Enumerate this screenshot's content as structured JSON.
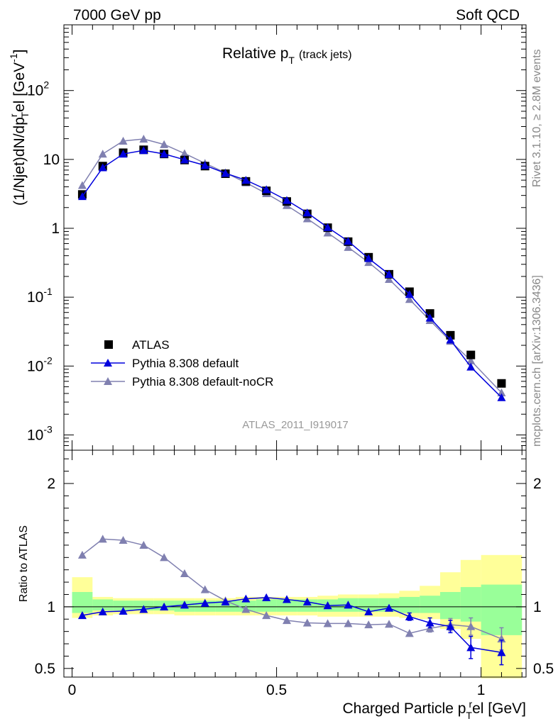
{
  "header": {
    "left": "7000 GeV pp",
    "right": "Soft QCD"
  },
  "side_text": {
    "top": "Rivet 3.1.10, ≥ 2.8M events",
    "bottom": "mcplots.cern.ch [arXiv:1306.3436]"
  },
  "colors": {
    "atlas": "#000000",
    "pythia_default": "#0000dd",
    "pythia_nocr": "#8080b0",
    "band_inner": "#99ff99",
    "band_outer": "#ffff99"
  },
  "chart_data": [
    {
      "type": "line",
      "panel": "main",
      "title": "Relative p",
      "title_sub": "T",
      "title_note": "(track jets)",
      "ylabel": "(1/Njet)dN/dp",
      "ylabel_sub": "T",
      "ylabel_sup": "r",
      "ylabel_tail": "el [GeV",
      "ylabel_unit_sup": "-1",
      "yscale": "log",
      "ylim": [
        0.0006,
        900
      ],
      "xlim": [
        -0.02,
        1.11
      ],
      "yticks": [
        {
          "v": 0.001,
          "base": "10",
          "exp": "-3"
        },
        {
          "v": 0.01,
          "base": "10",
          "exp": "-2"
        },
        {
          "v": 0.1,
          "base": "10",
          "exp": "-1"
        },
        {
          "v": 1,
          "base": "1",
          "exp": ""
        },
        {
          "v": 10,
          "base": "10",
          "exp": ""
        },
        {
          "v": 100,
          "base": "10",
          "exp": "2"
        }
      ],
      "watermark": "ATLAS_2011_I919017",
      "legend_position": "lower-left",
      "x": [
        0.025,
        0.075,
        0.125,
        0.175,
        0.225,
        0.275,
        0.325,
        0.375,
        0.425,
        0.475,
        0.525,
        0.575,
        0.625,
        0.675,
        0.725,
        0.775,
        0.825,
        0.875,
        0.925,
        0.975,
        1.05
      ],
      "series": [
        {
          "name": "ATLAS",
          "style": "markers",
          "values": [
            3.1,
            8.0,
            12.5,
            13.8,
            12.0,
            9.8,
            8.0,
            6.2,
            4.8,
            3.5,
            2.45,
            1.62,
            1.02,
            0.64,
            0.38,
            0.215,
            0.12,
            0.058,
            0.028,
            0.0145,
            0.0056
          ]
        },
        {
          "name": "Pythia 8.308 default",
          "style": "line-triangle",
          "values": [
            2.9,
            7.6,
            12.0,
            13.5,
            12.0,
            9.9,
            8.2,
            6.3,
            5.0,
            3.65,
            2.55,
            1.68,
            1.03,
            0.65,
            0.365,
            0.215,
            0.11,
            0.05,
            0.024,
            0.0097,
            0.0035
          ]
        },
        {
          "name": "Pythia 8.308 default-noCR",
          "style": "line-triangle",
          "values": [
            4.2,
            12.0,
            18.5,
            19.8,
            16.5,
            12.2,
            8.8,
            6.4,
            4.6,
            3.2,
            2.15,
            1.38,
            0.86,
            0.53,
            0.32,
            0.182,
            0.093,
            0.046,
            0.023,
            0.012,
            0.0041
          ]
        }
      ]
    },
    {
      "type": "line",
      "panel": "ratio",
      "ylabel": "Ratio to ATLAS",
      "xlabel": "Charged Particle p",
      "xlabel_sub": "T",
      "xlabel_sup": "r",
      "xlabel_tail": "el [GeV]",
      "ylim": [
        0.43,
        2.27
      ],
      "xlim": [
        -0.02,
        1.11
      ],
      "reference_line": 1,
      "xticks": [
        {
          "v": 0,
          "label": "0"
        },
        {
          "v": 0.5,
          "label": "0.5"
        },
        {
          "v": 1,
          "label": "1"
        }
      ],
      "yticks": [
        {
          "v": 0.5,
          "label": "0.5"
        },
        {
          "v": 1,
          "label": "1"
        },
        {
          "v": 2,
          "label": "2"
        }
      ],
      "bands": {
        "edges": [
          0,
          0.05,
          0.1,
          0.15,
          0.2,
          0.25,
          0.3,
          0.35,
          0.4,
          0.45,
          0.5,
          0.55,
          0.6,
          0.65,
          0.7,
          0.75,
          0.8,
          0.85,
          0.9,
          0.95,
          1.0,
          1.1
        ],
        "inner_lo": [
          0.95,
          0.97,
          0.97,
          0.97,
          0.97,
          0.96,
          0.96,
          0.96,
          0.96,
          0.96,
          0.96,
          0.96,
          0.96,
          0.96,
          0.96,
          0.96,
          0.95,
          0.95,
          0.9,
          0.88,
          0.77
        ],
        "inner_hi": [
          1.12,
          1.06,
          1.05,
          1.05,
          1.05,
          1.05,
          1.05,
          1.05,
          1.05,
          1.06,
          1.06,
          1.06,
          1.06,
          1.07,
          1.07,
          1.07,
          1.08,
          1.09,
          1.12,
          1.16,
          1.18
        ],
        "outer_lo": [
          0.91,
          0.93,
          0.94,
          0.94,
          0.94,
          0.93,
          0.93,
          0.93,
          0.93,
          0.93,
          0.93,
          0.93,
          0.92,
          0.92,
          0.92,
          0.92,
          0.91,
          0.9,
          0.82,
          0.74,
          0.42
        ],
        "outer_hi": [
          1.24,
          1.08,
          1.07,
          1.07,
          1.07,
          1.07,
          1.07,
          1.07,
          1.08,
          1.08,
          1.08,
          1.08,
          1.09,
          1.1,
          1.1,
          1.11,
          1.13,
          1.17,
          1.28,
          1.38,
          1.42
        ]
      },
      "x": [
        0.025,
        0.075,
        0.125,
        0.175,
        0.225,
        0.275,
        0.325,
        0.375,
        0.425,
        0.475,
        0.525,
        0.575,
        0.625,
        0.675,
        0.725,
        0.775,
        0.825,
        0.875,
        0.925,
        0.975,
        1.05
      ],
      "series": [
        {
          "name": "Pythia 8.308 default",
          "values": [
            0.93,
            0.96,
            0.965,
            0.98,
            1.0,
            1.015,
            1.03,
            1.04,
            1.065,
            1.075,
            1.06,
            1.04,
            1.01,
            1.015,
            0.96,
            0.99,
            0.92,
            0.87,
            0.84,
            0.67,
            0.63
          ],
          "err": [
            0.01,
            0.01,
            0.01,
            0.01,
            0.01,
            0.01,
            0.01,
            0.01,
            0.01,
            0.01,
            0.01,
            0.01,
            0.01,
            0.015,
            0.015,
            0.02,
            0.03,
            0.04,
            0.05,
            0.09,
            0.1
          ]
        },
        {
          "name": "Pythia 8.308 default-noCR",
          "values": [
            1.42,
            1.55,
            1.54,
            1.5,
            1.4,
            1.27,
            1.14,
            1.05,
            0.98,
            0.93,
            0.89,
            0.87,
            0.865,
            0.865,
            0.855,
            0.86,
            0.785,
            0.825,
            0.855,
            0.84,
            0.74
          ],
          "err": [
            0.01,
            0.01,
            0.01,
            0.01,
            0.01,
            0.01,
            0.01,
            0.01,
            0.01,
            0.01,
            0.01,
            0.01,
            0.01,
            0.01,
            0.015,
            0.02,
            0.02,
            0.03,
            0.05,
            0.07,
            0.09
          ]
        }
      ]
    }
  ]
}
